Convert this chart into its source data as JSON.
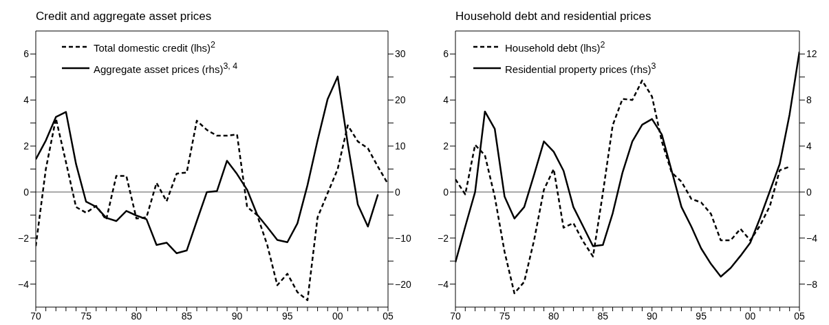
{
  "chart_data": [
    {
      "type": "line",
      "title": "Credit and aggregate asset prices",
      "legend": "top left",
      "marker": "none",
      "x": [
        1970,
        1971,
        1972,
        1973,
        1974,
        1975,
        1976,
        1977,
        1978,
        1979,
        1980,
        1981,
        1982,
        1983,
        1984,
        1985,
        1986,
        1987,
        1988,
        1989,
        1990,
        1991,
        1992,
        1993,
        1994,
        1995,
        1996,
        1997,
        1998,
        1999,
        2000,
        2001,
        2002,
        2003,
        2004,
        2005
      ],
      "series": [
        {
          "name": "Total domestic credit (lhs)$^{2}$",
          "color": "#000000",
          "line_style": "dashed",
          "axis": "y",
          "values": [
            -2.35,
            1.0,
            3.2,
            1.3,
            -0.65,
            -0.9,
            -0.6,
            -1.2,
            0.7,
            0.7,
            -1.15,
            -1.1,
            0.4,
            -0.4,
            0.8,
            0.85,
            3.1,
            2.7,
            2.45,
            2.45,
            2.5,
            -0.65,
            -1.0,
            -2.3,
            -4.05,
            -3.55,
            -4.35,
            -4.7,
            -1.1,
            -0.05,
            1.0,
            2.9,
            2.2,
            1.9,
            1.1,
            0.35
          ]
        },
        {
          "name": "Aggregate asset prices (rhs)$^{3, 4}$",
          "color": "#000000",
          "line_style": "solid",
          "axis": "y2",
          "values": [
            7.1,
            11.2,
            16.3,
            17.4,
            6.1,
            -2.1,
            -3.2,
            -5.6,
            -6.3,
            -4.1,
            -5.1,
            -5.9,
            -11.5,
            -11.0,
            -13.3,
            -12.7,
            -6.3,
            0,
            0.2,
            6.8,
            3.9,
            0.5,
            -4.9,
            -7.6,
            -10.4,
            -10.9,
            -6.8,
            1.5,
            11.2,
            20.2,
            25.1,
            10.5,
            -2.7,
            -7.5,
            -0.5,
            null
          ]
        }
      ],
      "ref_lines": [
        {
          "axis": "y",
          "value": 0,
          "color": "#555555"
        }
      ],
      "xlim": [
        1970,
        2005
      ],
      "xticks": [
        {
          "value": 1970,
          "label": "70"
        },
        {
          "value": 1971,
          "label": null
        },
        {
          "value": 1972,
          "label": null
        },
        {
          "value": 1973,
          "label": null
        },
        {
          "value": 1974,
          "label": null
        },
        {
          "value": 1975,
          "label": "75"
        },
        {
          "value": 1976,
          "label": null
        },
        {
          "value": 1977,
          "label": null
        },
        {
          "value": 1978,
          "label": null
        },
        {
          "value": 1979,
          "label": null
        },
        {
          "value": 1980,
          "label": "80"
        },
        {
          "value": 1981,
          "label": null
        },
        {
          "value": 1982,
          "label": null
        },
        {
          "value": 1983,
          "label": null
        },
        {
          "value": 1984,
          "label": null
        },
        {
          "value": 1985,
          "label": "85"
        },
        {
          "value": 1986,
          "label": null
        },
        {
          "value": 1987,
          "label": null
        },
        {
          "value": 1988,
          "label": null
        },
        {
          "value": 1989,
          "label": null
        },
        {
          "value": 1990,
          "label": "90"
        },
        {
          "value": 1991,
          "label": null
        },
        {
          "value": 1992,
          "label": null
        },
        {
          "value": 1993,
          "label": null
        },
        {
          "value": 1994,
          "label": null
        },
        {
          "value": 1995,
          "label": "95"
        },
        {
          "value": 1996,
          "label": null
        },
        {
          "value": 1997,
          "label": null
        },
        {
          "value": 1998,
          "label": null
        },
        {
          "value": 1999,
          "label": null
        },
        {
          "value": 2000,
          "label": "00"
        },
        {
          "value": 2001,
          "label": null
        },
        {
          "value": 2002,
          "label": null
        },
        {
          "value": 2003,
          "label": null
        },
        {
          "value": 2004,
          "label": null
        },
        {
          "value": 2005,
          "label": "05"
        }
      ],
      "ylim": [
        -5,
        7
      ],
      "yticks": [
        {
          "value": -4,
          "label": "−4"
        },
        {
          "value": -3,
          "label": null
        },
        {
          "value": -2,
          "label": "−2"
        },
        {
          "value": -1,
          "label": null
        },
        0,
        {
          "value": 1,
          "label": null
        },
        2,
        {
          "value": 3,
          "label": null
        },
        4,
        {
          "value": 5,
          "label": null
        },
        6
      ],
      "y2lim": [
        -25,
        35
      ],
      "y2ticks": [
        {
          "value": -20,
          "label": "−20"
        },
        {
          "value": -15,
          "label": null
        },
        {
          "value": -10,
          "label": "−10"
        },
        {
          "value": -5,
          "label": null
        },
        0,
        {
          "value": 5,
          "label": null
        },
        10,
        {
          "value": 15,
          "label": null
        },
        20,
        {
          "value": 25,
          "label": null
        },
        30
      ]
    },
    {
      "type": "line",
      "title": "Household debt and residential prices",
      "legend": "top left",
      "marker": "none",
      "x": [
        1970,
        1971,
        1972,
        1973,
        1974,
        1975,
        1976,
        1977,
        1978,
        1979,
        1980,
        1981,
        1982,
        1983,
        1984,
        1985,
        1986,
        1987,
        1988,
        1989,
        1990,
        1991,
        1992,
        1993,
        1994,
        1995,
        1996,
        1997,
        1998,
        1999,
        2000,
        2001,
        2002,
        2003,
        2004,
        2005
      ],
      "series": [
        {
          "name": "Household debt (lhs)$^{2}$",
          "color": "#000000",
          "line_style": "dashed",
          "axis": "y",
          "values": [
            0.55,
            -0.1,
            2.05,
            1.6,
            -0.2,
            -2.6,
            -4.4,
            -3.9,
            -2.1,
            0.1,
            1.0,
            -1.55,
            -1.35,
            -2.15,
            -2.8,
            -0.05,
            2.9,
            4.05,
            4.0,
            4.85,
            4.15,
            2.2,
            0.85,
            0.45,
            -0.3,
            -0.45,
            -0.95,
            -2.1,
            -2.1,
            -1.6,
            -2.1,
            -1.45,
            -0.6,
            0.95,
            1.1,
            null
          ]
        },
        {
          "name": "Residential property prices (rhs)$^{3}$",
          "color": "#000000",
          "line_style": "solid",
          "axis": "y2",
          "values": [
            -6.1,
            -3.0,
            0,
            7.0,
            5.5,
            -0.4,
            -2.3,
            -1.3,
            1.5,
            4.4,
            3.5,
            1.85,
            -1.3,
            -3.0,
            -4.7,
            -4.6,
            -1.85,
            1.7,
            4.4,
            5.85,
            6.35,
            5.0,
            1.85,
            -1.3,
            -3.0,
            -4.9,
            -6.25,
            -7.35,
            -6.6,
            -5.55,
            -4.4,
            -2.25,
            0.1,
            2.45,
            6.75,
            12.2
          ]
        }
      ],
      "ref_lines": [
        {
          "axis": "y",
          "value": 0,
          "color": "#555555"
        }
      ],
      "xlim": [
        1970,
        2005
      ],
      "xticks": [
        {
          "value": 1970,
          "label": "70"
        },
        {
          "value": 1971,
          "label": null
        },
        {
          "value": 1972,
          "label": null
        },
        {
          "value": 1973,
          "label": null
        },
        {
          "value": 1974,
          "label": null
        },
        {
          "value": 1975,
          "label": "75"
        },
        {
          "value": 1976,
          "label": null
        },
        {
          "value": 1977,
          "label": null
        },
        {
          "value": 1978,
          "label": null
        },
        {
          "value": 1979,
          "label": null
        },
        {
          "value": 1980,
          "label": "80"
        },
        {
          "value": 1981,
          "label": null
        },
        {
          "value": 1982,
          "label": null
        },
        {
          "value": 1983,
          "label": null
        },
        {
          "value": 1984,
          "label": null
        },
        {
          "value": 1985,
          "label": "85"
        },
        {
          "value": 1986,
          "label": null
        },
        {
          "value": 1987,
          "label": null
        },
        {
          "value": 1988,
          "label": null
        },
        {
          "value": 1989,
          "label": null
        },
        {
          "value": 1990,
          "label": "90"
        },
        {
          "value": 1991,
          "label": null
        },
        {
          "value": 1992,
          "label": null
        },
        {
          "value": 1993,
          "label": null
        },
        {
          "value": 1994,
          "label": null
        },
        {
          "value": 1995,
          "label": "95"
        },
        {
          "value": 1996,
          "label": null
        },
        {
          "value": 1997,
          "label": null
        },
        {
          "value": 1998,
          "label": null
        },
        {
          "value": 1999,
          "label": null
        },
        {
          "value": 2000,
          "label": "00"
        },
        {
          "value": 2001,
          "label": null
        },
        {
          "value": 2002,
          "label": null
        },
        {
          "value": 2003,
          "label": null
        },
        {
          "value": 2004,
          "label": null
        },
        {
          "value": 2005,
          "label": "05"
        }
      ],
      "ylim": [
        -5,
        7
      ],
      "yticks": [
        {
          "value": -4,
          "label": "−4"
        },
        {
          "value": -3,
          "label": null
        },
        {
          "value": -2,
          "label": "−2"
        },
        {
          "value": -1,
          "label": null
        },
        0,
        {
          "value": 1,
          "label": null
        },
        2,
        {
          "value": 3,
          "label": null
        },
        4,
        {
          "value": 5,
          "label": null
        },
        6
      ],
      "y2lim": [
        -10,
        14
      ],
      "y2ticks": [
        {
          "value": -8,
          "label": "−8"
        },
        {
          "value": -6,
          "label": null
        },
        {
          "value": -4,
          "label": "−4"
        },
        {
          "value": -2,
          "label": null
        },
        0,
        {
          "value": 2,
          "label": null
        },
        4,
        {
          "value": 6,
          "label": null
        },
        8,
        {
          "value": 10,
          "label": null
        },
        12
      ]
    }
  ]
}
